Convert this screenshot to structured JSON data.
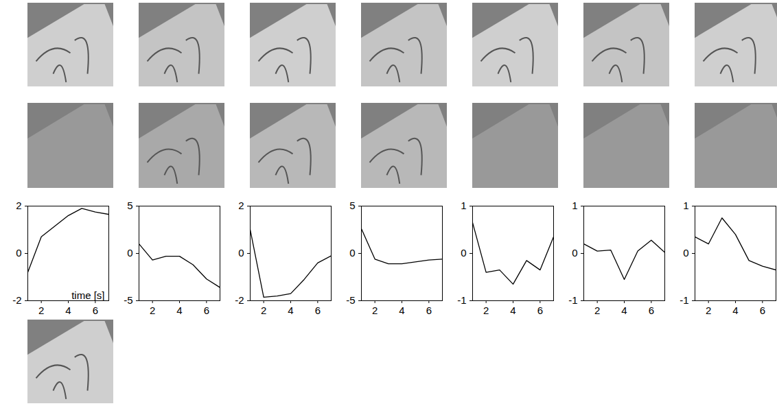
{
  "chart_data": [
    {
      "type": "line",
      "color": "#000000",
      "xlabel": "time [s]",
      "x": [
        1,
        2,
        3,
        4,
        5,
        6,
        7
      ],
      "values": [
        -0.8,
        0.7,
        1.15,
        1.6,
        1.9,
        1.75,
        1.65
      ],
      "xlim": [
        1,
        7
      ],
      "xticks": [
        2,
        4,
        6
      ],
      "ylim": [
        -2,
        2
      ],
      "yticks": [
        -2,
        0,
        2
      ]
    },
    {
      "type": "line",
      "color": "#000000",
      "x": [
        1,
        2,
        3,
        4,
        5,
        6,
        7
      ],
      "values": [
        1,
        -0.7,
        -0.3,
        -0.3,
        -1.2,
        -2.7,
        -3.6
      ],
      "xlim": [
        1,
        7
      ],
      "xticks": [
        2,
        4,
        6
      ],
      "ylim": [
        -5,
        5
      ],
      "yticks": [
        -5,
        0,
        5
      ]
    },
    {
      "type": "line",
      "color": "#000000",
      "x": [
        1,
        2,
        3,
        4,
        5,
        6,
        7
      ],
      "values": [
        1,
        -1.85,
        -1.8,
        -1.7,
        -1.1,
        -0.4,
        -0.1
      ],
      "xlim": [
        1,
        7
      ],
      "xticks": [
        2,
        4,
        6
      ],
      "ylim": [
        -2,
        2
      ],
      "yticks": [
        -2,
        0,
        2
      ]
    },
    {
      "type": "line",
      "color": "#000000",
      "x": [
        1,
        2,
        3,
        4,
        5,
        6,
        7
      ],
      "values": [
        2.6,
        -0.6,
        -1.1,
        -1.1,
        -0.9,
        -0.7,
        -0.6
      ],
      "xlim": [
        1,
        7
      ],
      "xticks": [
        2,
        4,
        6
      ],
      "ylim": [
        -5,
        5
      ],
      "yticks": [
        -5,
        0,
        5
      ]
    },
    {
      "type": "line",
      "color": "#000000",
      "x": [
        1,
        2,
        3,
        4,
        5,
        6,
        7
      ],
      "values": [
        0.65,
        -0.4,
        -0.35,
        -0.65,
        -0.15,
        -0.35,
        0.35
      ],
      "xlim": [
        1,
        7
      ],
      "xticks": [
        2,
        4,
        6
      ],
      "ylim": [
        -1,
        1
      ],
      "yticks": [
        -1,
        0,
        1
      ]
    },
    {
      "type": "line",
      "color": "#000000",
      "x": [
        1,
        2,
        3,
        4,
        5,
        6,
        7
      ],
      "values": [
        0.2,
        0.05,
        0.07,
        -0.55,
        0.05,
        0.28,
        0.02
      ],
      "xlim": [
        1,
        7
      ],
      "xticks": [
        2,
        4,
        6
      ],
      "ylim": [
        -1,
        1
      ],
      "yticks": [
        -1,
        0,
        1
      ]
    },
    {
      "type": "line",
      "color": "#000000",
      "x": [
        1,
        2,
        3,
        4,
        5,
        6,
        7
      ],
      "values": [
        0.35,
        0.2,
        0.75,
        0.4,
        -0.15,
        -0.27,
        -0.35
      ],
      "xlim": [
        1,
        7
      ],
      "xticks": [
        2,
        4,
        6
      ],
      "ylim": [
        -1,
        1
      ],
      "yticks": [
        -1,
        0,
        1
      ]
    }
  ]
}
